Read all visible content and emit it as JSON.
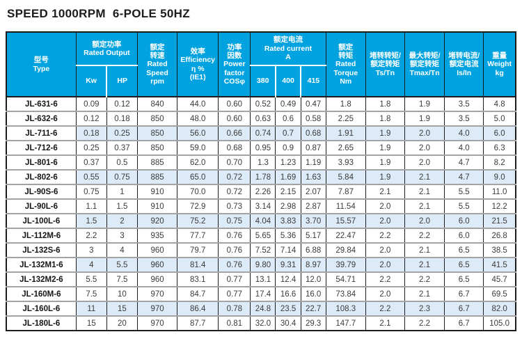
{
  "page": {
    "title": "SPEED 1000RPM  6-POLE 50HZ"
  },
  "colors": {
    "header_bg": "#00a3e0",
    "header_text": "#ffffff",
    "row_highlight_bg": "#dcebf7",
    "grid_dark": "#1b1b1b",
    "row_divider": "#a3a3a3",
    "cell_text": "#3a3a3a"
  },
  "table": {
    "header": {
      "type": [
        "型号",
        "Type"
      ],
      "rated_output": [
        "额定功率",
        "Rated Output"
      ],
      "kw": "Kw",
      "hp": "HP",
      "rated_speed": [
        "额定",
        "转速",
        "Rated",
        "Speed",
        "rpm"
      ],
      "efficiency": [
        "效率",
        "Efficiency",
        "η %",
        "(IE1)"
      ],
      "power_factor": [
        "功率",
        "因数",
        "Power",
        "factor",
        "COSφ"
      ],
      "rated_current": [
        "额定电流",
        "Rated current",
        "A"
      ],
      "current_phases": [
        "380",
        "400",
        "415"
      ],
      "rated_torque": [
        "额定",
        "转矩",
        "Rated",
        "Torque",
        "Nm"
      ],
      "ts_tn": [
        "堵转转矩/",
        "额定转矩",
        "Ts/Tn"
      ],
      "tmax_tn": [
        "最大转矩/",
        "额定转矩",
        "Tmax/Tn"
      ],
      "is_in": [
        "堵转电流/",
        "额定电流",
        "Is/In"
      ],
      "weight": [
        "重量",
        "Weight",
        "kg"
      ]
    },
    "rows": [
      {
        "type": "JL-631-6",
        "highlighted": false,
        "values": [
          "0.09",
          "0.12",
          "840",
          "44.0",
          "0.60",
          "0.52",
          "0.49",
          "0.47",
          "1.8",
          "1.8",
          "1.9",
          "3.5",
          "4.8"
        ]
      },
      {
        "type": "JL-632-6",
        "highlighted": false,
        "values": [
          "0.12",
          "0.18",
          "850",
          "48.0",
          "0.60",
          "0.63",
          "0.6",
          "0.58",
          "2.25",
          "1.8",
          "1.9",
          "3.5",
          "5.0"
        ]
      },
      {
        "type": "JL-711-6",
        "highlighted": true,
        "values": [
          "0.18",
          "0.25",
          "850",
          "56.0",
          "0.66",
          "0.74",
          "0.7",
          "0.68",
          "1.91",
          "1.9",
          "2.0",
          "4.0",
          "6.0"
        ]
      },
      {
        "type": "JL-712-6",
        "highlighted": false,
        "values": [
          "0.25",
          "0.37",
          "850",
          "59.0",
          "0.68",
          "0.95",
          "0.9",
          "0.87",
          "2.65",
          "1.9",
          "2.0",
          "4.0",
          "6.3"
        ]
      },
      {
        "type": "JL-801-6",
        "highlighted": false,
        "values": [
          "0.37",
          "0.5",
          "885",
          "62.0",
          "0.70",
          "1.3",
          "1.23",
          "1.19",
          "3.93",
          "1.9",
          "2.0",
          "4.7",
          "8.2"
        ]
      },
      {
        "type": "JL-802-6",
        "highlighted": true,
        "values": [
          "0.55",
          "0.75",
          "885",
          "65.0",
          "0.72",
          "1.78",
          "1.69",
          "1.63",
          "5.84",
          "1.9",
          "2.1",
          "4.7",
          "9.0"
        ]
      },
      {
        "type": "JL-90S-6",
        "highlighted": false,
        "values": [
          "0.75",
          "1",
          "910",
          "70.0",
          "0.72",
          "2.26",
          "2.15",
          "2.07",
          "7.87",
          "2.1",
          "2.1",
          "5.5",
          "11.0"
        ]
      },
      {
        "type": "JL-90L-6",
        "highlighted": false,
        "values": [
          "1.1",
          "1.5",
          "910",
          "72.9",
          "0.73",
          "3.14",
          "2.98",
          "2.87",
          "11.54",
          "2.0",
          "2.1",
          "5.5",
          "12.2"
        ]
      },
      {
        "type": "JL-100L-6",
        "highlighted": true,
        "values": [
          "1.5",
          "2",
          "920",
          "75.2",
          "0.75",
          "4.04",
          "3.83",
          "3.70",
          "15.57",
          "2.0",
          "2.0",
          "6.0",
          "21.5"
        ]
      },
      {
        "type": "JL-112M-6",
        "highlighted": false,
        "values": [
          "2.2",
          "3",
          "935",
          "77.7",
          "0.76",
          "5.65",
          "5.36",
          "5.17",
          "22.47",
          "2.2",
          "2.2",
          "6.0",
          "26.8"
        ]
      },
      {
        "type": "JL-132S-6",
        "highlighted": false,
        "values": [
          "3",
          "4",
          "960",
          "79.7",
          "0.76",
          "7.52",
          "7.14",
          "6.88",
          "29.84",
          "2.0",
          "2.1",
          "6.5",
          "38.5"
        ]
      },
      {
        "type": "JL-132M1-6",
        "highlighted": true,
        "values": [
          "4",
          "5.5",
          "960",
          "81.4",
          "0.76",
          "9.80",
          "9.31",
          "8.97",
          "39.79",
          "2.0",
          "2.1",
          "6.5",
          "41.5"
        ]
      },
      {
        "type": "JL-132M2-6",
        "highlighted": false,
        "values": [
          "5.5",
          "7.5",
          "960",
          "83.1",
          "0.77",
          "13.1",
          "12.4",
          "12.0",
          "54.71",
          "2.2",
          "2.2",
          "6.5",
          "45.7"
        ]
      },
      {
        "type": "JL-160M-6",
        "highlighted": false,
        "values": [
          "7.5",
          "10",
          "970",
          "84.7",
          "0.77",
          "17.4",
          "16.6",
          "16.0",
          "73.84",
          "2.0",
          "2.1",
          "6.7",
          "69.5"
        ]
      },
      {
        "type": "JL-160L-6",
        "highlighted": true,
        "values": [
          "11",
          "15",
          "970",
          "86.4",
          "0.78",
          "24.8",
          "23.5",
          "22.7",
          "108.3",
          "2.2",
          "2.3",
          "6.7",
          "82.0"
        ]
      },
      {
        "type": "JL-180L-6",
        "highlighted": false,
        "values": [
          "15",
          "20",
          "970",
          "87.7",
          "0.81",
          "32.0",
          "30.4",
          "29.3",
          "147.7",
          "2.1",
          "2.2",
          "6.7",
          "105.0"
        ]
      }
    ]
  }
}
